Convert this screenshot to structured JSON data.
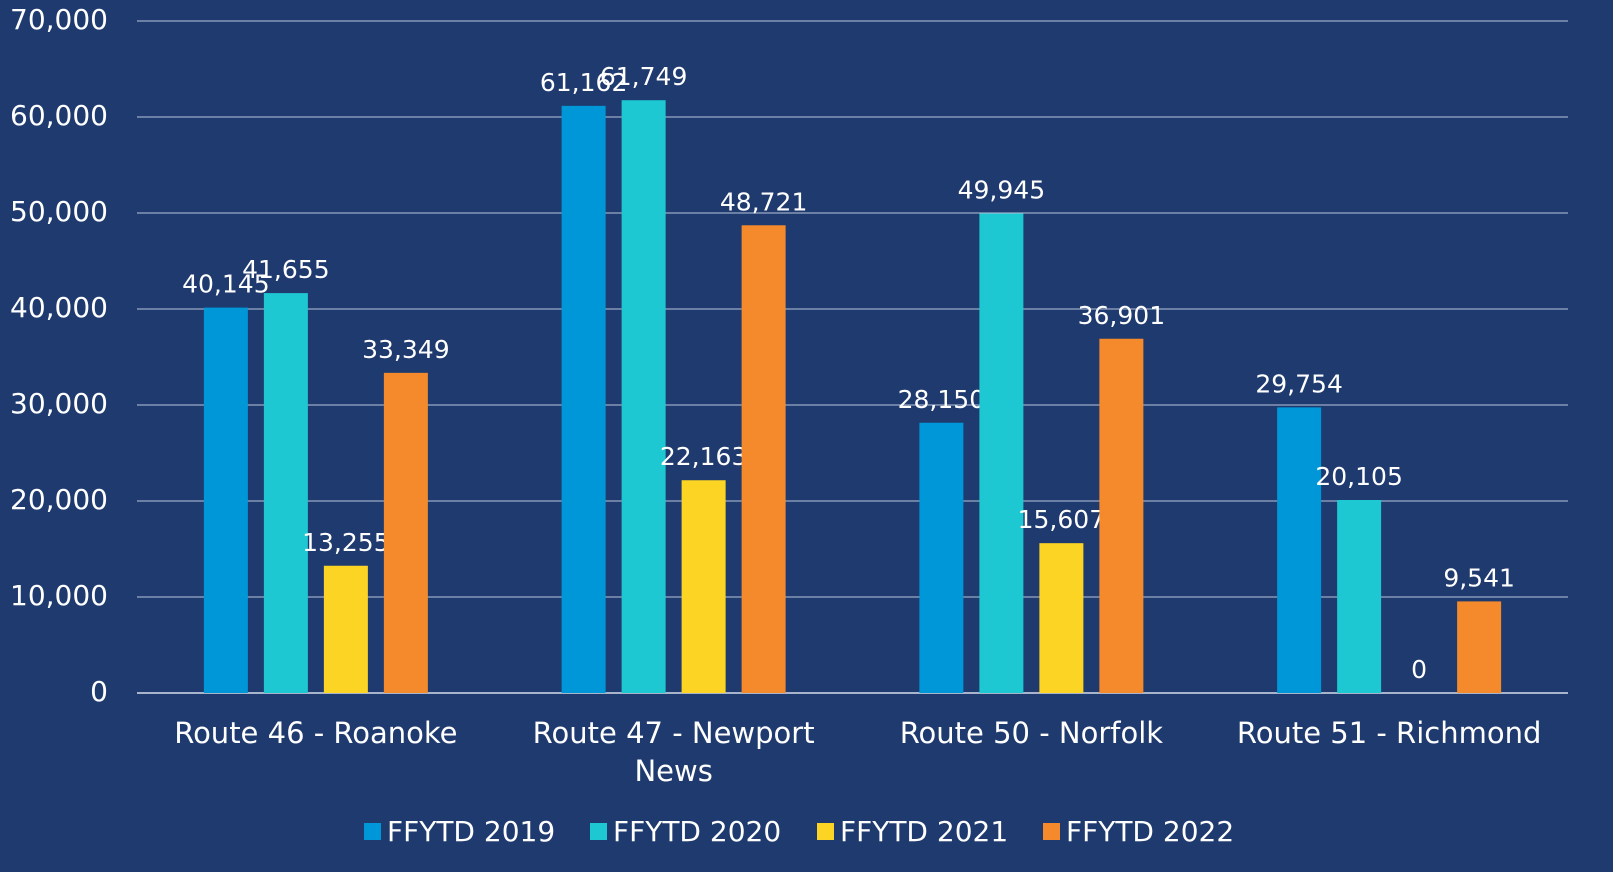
{
  "chart_data": {
    "type": "bar",
    "categories": [
      "Route 46 - Roanoke",
      "Route 47 - Newport News",
      "Route 50 - Norfolk",
      "Route 51 - Richmond"
    ],
    "series": [
      {
        "name": "FFYTD 2019",
        "color": "#0097d9",
        "values": [
          40145,
          61162,
          28150,
          29754
        ],
        "value_labels": [
          "40,145",
          "61,162",
          "28,150",
          "29,754"
        ]
      },
      {
        "name": "FFYTD 2020",
        "color": "#1ec8d3",
        "values": [
          41655,
          61749,
          49945,
          20105
        ],
        "value_labels": [
          "41,655",
          "61,749",
          "49,945",
          "20,105"
        ]
      },
      {
        "name": "FFYTD 2021",
        "color": "#fcd424",
        "values": [
          13255,
          22163,
          15607,
          0
        ],
        "value_labels": [
          "13,255",
          "22,163",
          "15,607",
          "0"
        ]
      },
      {
        "name": "FFYTD 2022",
        "color": "#f48a2b",
        "values": [
          33349,
          48721,
          36901,
          9541
        ],
        "value_labels": [
          "33,349",
          "48,721",
          "36,901",
          "9,541"
        ]
      }
    ],
    "ylim": [
      0,
      70000
    ],
    "yticks": [
      0,
      {
        "value": 10000,
        "label": "10,000"
      },
      {
        "value": 20000,
        "label": "20,000"
      },
      {
        "value": 30000,
        "label": "30,000"
      },
      {
        "value": 40000,
        "label": "40,000"
      },
      {
        "value": 50000,
        "label": "50,000"
      },
      {
        "value": 60000,
        "label": "60,000"
      },
      {
        "value": 70000,
        "label": "70,000"
      }
    ],
    "grid": true,
    "legend": "bottom"
  }
}
